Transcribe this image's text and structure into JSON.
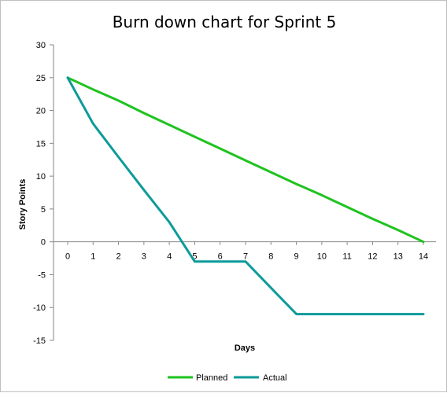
{
  "chart_data": {
    "type": "line",
    "title": "Burn down chart for Sprint 5",
    "xlabel": "Days",
    "ylabel": "Story Points",
    "categories": [
      "0",
      "1",
      "2",
      "3",
      "4",
      "5",
      "6",
      "7",
      "8",
      "9",
      "10",
      "11",
      "12",
      "13",
      "14"
    ],
    "ylim": [
      -15,
      30
    ],
    "yticks": [
      -15,
      -10,
      -5,
      0,
      5,
      10,
      15,
      20,
      25,
      30
    ],
    "grid": false,
    "legend_position": "bottom",
    "series": [
      {
        "name": "Planned",
        "color": "#1fc31f",
        "values": [
          25,
          23.2,
          21.5,
          19.6,
          17.8,
          16,
          14.2,
          12.4,
          10.6,
          8.8,
          7.1,
          5.3,
          3.5,
          1.8,
          0
        ]
      },
      {
        "name": "Actual",
        "color": "#0d9a9a",
        "values": [
          25,
          18,
          12.9,
          7.9,
          3,
          -3,
          -3,
          -3,
          -7,
          -11,
          -11,
          -11,
          -11,
          -11,
          -11
        ]
      }
    ]
  }
}
